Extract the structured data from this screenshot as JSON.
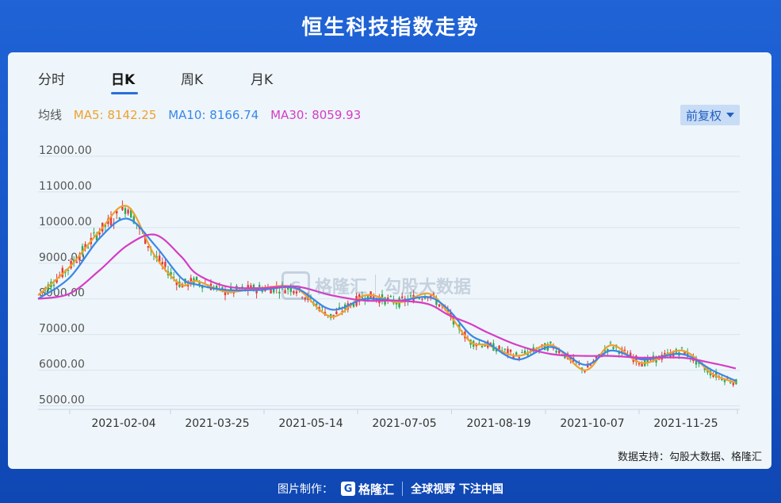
{
  "page_title": "恒生科技指数走势",
  "tabs": [
    {
      "label": "分时",
      "active": false
    },
    {
      "label": "日K",
      "active": true
    },
    {
      "label": "周K",
      "active": false
    },
    {
      "label": "月K",
      "active": false
    }
  ],
  "ma_legend": {
    "label": "均线",
    "ma5": "MA5: 8142.25",
    "ma10": "MA10: 8166.74",
    "ma30": "MA30: 8059.93"
  },
  "adjust_button": "前复权",
  "colors": {
    "ma5": "#f0a030",
    "ma10": "#3a86e8",
    "ma30": "#d63cc4",
    "up": "#e23b3b",
    "down": "#2fa84f",
    "accent": "#2a6fdb"
  },
  "watermark": {
    "brand": "格隆汇",
    "sub": "勾股大数据"
  },
  "source_note": "数据支持：勾股大数据、格隆汇",
  "bottom_bar": {
    "prefix": "图片制作：",
    "brand": "格隆汇",
    "slogan": "全球视野 下注中国"
  },
  "chart_data": {
    "type": "line",
    "title": "恒生科技指数走势",
    "ylim": [
      4900,
      12200
    ],
    "y_ticks": [
      "12000.00",
      "11000.00",
      "10000.00",
      "9000.00",
      "8000.00",
      "7000.00",
      "6000.00",
      "5000.00"
    ],
    "x_ticks": [
      "2021-02-04",
      "2021-03-25",
      "2021-05-14",
      "2021-07-05",
      "2021-08-19",
      "2021-10-07",
      "2021-11-25"
    ],
    "grid": true,
    "series": [
      {
        "name": "MA5",
        "x": [
          "2021-01-04",
          "2021-01-20",
          "2021-02-04",
          "2021-02-18",
          "2021-03-04",
          "2021-03-17",
          "2021-03-25",
          "2021-04-09",
          "2021-04-26",
          "2021-05-14",
          "2021-06-01",
          "2021-06-18",
          "2021-07-05",
          "2021-07-20",
          "2021-07-30",
          "2021-08-10",
          "2021-08-19",
          "2021-09-03",
          "2021-09-20",
          "2021-10-07",
          "2021-10-20",
          "2021-11-05",
          "2021-11-25",
          "2021-12-10",
          "2021-12-22"
        ],
        "values": [
          8100,
          8900,
          9900,
          10600,
          9200,
          8400,
          8500,
          8200,
          8300,
          8300,
          7500,
          8100,
          7900,
          8150,
          7600,
          6800,
          6700,
          6400,
          6700,
          6000,
          6700,
          6200,
          6550,
          5900,
          5650
        ]
      },
      {
        "name": "MA10",
        "x": [
          "2021-01-04",
          "2021-01-20",
          "2021-02-04",
          "2021-02-18",
          "2021-03-04",
          "2021-03-17",
          "2021-03-25",
          "2021-04-09",
          "2021-04-26",
          "2021-05-14",
          "2021-06-01",
          "2021-06-18",
          "2021-07-05",
          "2021-07-20",
          "2021-07-30",
          "2021-08-10",
          "2021-08-19",
          "2021-09-03",
          "2021-09-20",
          "2021-10-07",
          "2021-10-20",
          "2021-11-05",
          "2021-11-25",
          "2021-12-10",
          "2021-12-22"
        ],
        "values": [
          8000,
          8600,
          9700,
          10250,
          9500,
          8600,
          8400,
          8250,
          8250,
          8300,
          7700,
          8000,
          7950,
          8050,
          7700,
          7000,
          6750,
          6300,
          6650,
          6150,
          6550,
          6300,
          6450,
          6000,
          5700
        ]
      },
      {
        "name": "MA30",
        "x": [
          "2021-01-04",
          "2021-01-20",
          "2021-02-04",
          "2021-02-18",
          "2021-03-04",
          "2021-03-17",
          "2021-03-25",
          "2021-04-09",
          "2021-04-26",
          "2021-05-14",
          "2021-06-01",
          "2021-06-18",
          "2021-07-05",
          "2021-07-20",
          "2021-07-30",
          "2021-08-10",
          "2021-08-19",
          "2021-09-03",
          "2021-09-20",
          "2021-10-07",
          "2021-10-20",
          "2021-11-05",
          "2021-11-25",
          "2021-12-10",
          "2021-12-22"
        ],
        "values": [
          8000,
          8150,
          8800,
          9500,
          9800,
          9200,
          8700,
          8350,
          8300,
          8350,
          8100,
          7950,
          7950,
          7850,
          7550,
          7300,
          7050,
          6700,
          6450,
          6400,
          6400,
          6350,
          6350,
          6200,
          6050
        ]
      }
    ]
  }
}
